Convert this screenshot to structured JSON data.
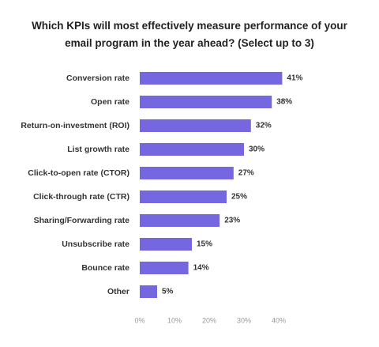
{
  "chart_data": {
    "type": "bar",
    "orientation": "horizontal",
    "title": "Which KPIs will most effectively measure performance of your email program in the year ahead? (Select up to 3)",
    "categories": [
      "Conversion rate",
      "Open rate",
      "Return-on-investment (ROI)",
      "List growth rate",
      "Click-to-open rate (CTOR)",
      "Click-through rate (CTR)",
      "Sharing/Forwarding rate",
      "Unsubscribe rate",
      "Bounce rate",
      "Other"
    ],
    "values": [
      41,
      38,
      32,
      30,
      27,
      25,
      23,
      15,
      14,
      5
    ],
    "value_labels": [
      "41%",
      "38%",
      "32%",
      "30%",
      "27%",
      "25%",
      "23%",
      "15%",
      "14%",
      "5%"
    ],
    "color": "#7467df",
    "xlim": [
      0,
      45
    ],
    "xticks": [
      {
        "value": 0,
        "label": "0%"
      },
      {
        "value": 10,
        "label": "10%"
      },
      {
        "value": 20,
        "label": "20%"
      },
      {
        "value": 30,
        "label": "30%"
      },
      {
        "value": 40,
        "label": "40%"
      }
    ]
  }
}
